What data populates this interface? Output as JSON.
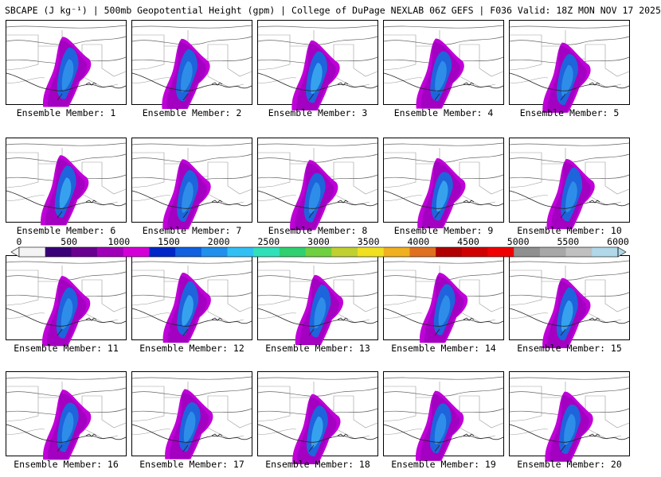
{
  "title": "SBCAPE (J kg⁻¹) | 500mb Geopotential Height (gpm) | College of DuPage NEXLAB 06Z GEFS | F036 Valid: 18Z MON NOV 17 2025",
  "members": [
    {
      "label": "Ensemble Member: 1"
    },
    {
      "label": "Ensemble Member: 2"
    },
    {
      "label": "Ensemble Member: 3"
    },
    {
      "label": "Ensemble Member: 4"
    },
    {
      "label": "Ensemble Member: 5"
    },
    {
      "label": "Ensemble Member: 6"
    },
    {
      "label": "Ensemble Member: 7"
    },
    {
      "label": "Ensemble Member: 8"
    },
    {
      "label": "Ensemble Member: 9"
    },
    {
      "label": "Ensemble Member: 10"
    },
    {
      "label": "Ensemble Member: 11"
    },
    {
      "label": "Ensemble Member: 12"
    },
    {
      "label": "Ensemble Member: 13"
    },
    {
      "label": "Ensemble Member: 14"
    },
    {
      "label": "Ensemble Member: 15"
    },
    {
      "label": "Ensemble Member: 16"
    },
    {
      "label": "Ensemble Member: 17"
    },
    {
      "label": "Ensemble Member: 18"
    },
    {
      "label": "Ensemble Member: 19"
    },
    {
      "label": "Ensemble Member: 20"
    }
  ],
  "colorbar": {
    "labels": [
      "0",
      "500",
      "1000",
      "1500",
      "2000",
      "2500",
      "3000",
      "3500",
      "4000",
      "4500",
      "5000",
      "5500",
      "6000"
    ],
    "colors": [
      "#f4f4f4",
      "#3a0078",
      "#6a0090",
      "#a000b8",
      "#d400d8",
      "#0028c8",
      "#1060e0",
      "#2090ec",
      "#30c0f4",
      "#30e0b8",
      "#30d070",
      "#70d040",
      "#c0d030",
      "#f0e020",
      "#f0b020",
      "#e07020",
      "#b00000",
      "#d00000",
      "#f00000",
      "#909090",
      "#a8a8a8",
      "#c0c0c0",
      "#b0d8e8"
    ]
  }
}
